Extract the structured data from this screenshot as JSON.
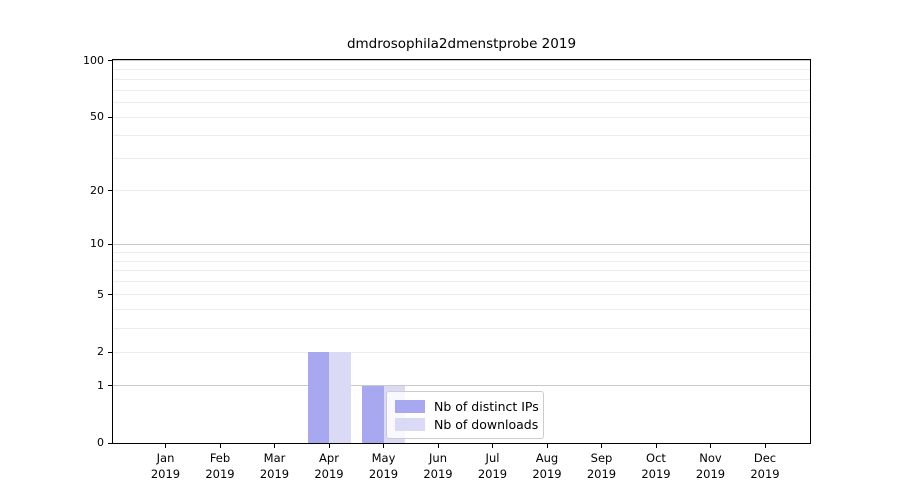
{
  "chart_data": {
    "type": "bar",
    "title": "dmdrosophila2dmenstprobe 2019",
    "categories": [
      {
        "month": "Jan",
        "year": "2019"
      },
      {
        "month": "Feb",
        "year": "2019"
      },
      {
        "month": "Mar",
        "year": "2019"
      },
      {
        "month": "Apr",
        "year": "2019"
      },
      {
        "month": "May",
        "year": "2019"
      },
      {
        "month": "Jun",
        "year": "2019"
      },
      {
        "month": "Jul",
        "year": "2019"
      },
      {
        "month": "Aug",
        "year": "2019"
      },
      {
        "month": "Sep",
        "year": "2019"
      },
      {
        "month": "Oct",
        "year": "2019"
      },
      {
        "month": "Nov",
        "year": "2019"
      },
      {
        "month": "Dec",
        "year": "2019"
      }
    ],
    "series": [
      {
        "name": "Nb of distinct IPs",
        "color": "#a8a8f0",
        "values": [
          0,
          0,
          0,
          2,
          1,
          0,
          0,
          0,
          0,
          0,
          0,
          0
        ]
      },
      {
        "name": "Nb of downloads",
        "color": "#dadaf7",
        "values": [
          0,
          0,
          0,
          2,
          1,
          0,
          0,
          0,
          0,
          0,
          0,
          0
        ]
      }
    ],
    "xlabel": "",
    "ylabel": "",
    "yscale": "log1p",
    "ylim": [
      0,
      110
    ],
    "y_ticks": [
      0,
      1,
      2,
      5,
      10,
      20,
      50,
      100
    ],
    "y_major_gridlines": [
      1,
      10,
      100
    ],
    "y_minor_gridlines": [
      2,
      3,
      4,
      5,
      6,
      7,
      8,
      9,
      20,
      30,
      40,
      50,
      60,
      70,
      80,
      90
    ],
    "grid": "horizontal",
    "legend_position": "lower center"
  },
  "legend": {
    "entries": [
      {
        "label": "Nb of distinct IPs",
        "color": "#a8a8f0"
      },
      {
        "label": "Nb of downloads",
        "color": "#dadaf7"
      }
    ]
  },
  "colors": {
    "major_grid": "#c9c9c9",
    "minor_grid": "#ececec",
    "axis": "#000000",
    "background": "#ffffff"
  }
}
